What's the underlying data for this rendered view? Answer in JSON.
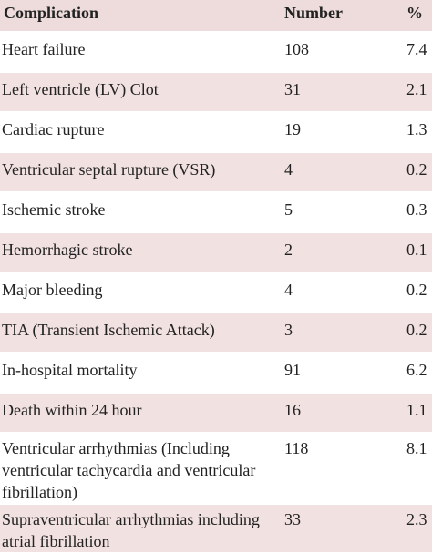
{
  "table": {
    "header": [
      "Complication",
      "Number",
      "%"
    ],
    "rows": [
      [
        "Heart failure",
        108,
        7.4
      ],
      [
        "Left ventricle (LV)  Clot",
        31,
        2.1
      ],
      [
        "Cardiac rupture",
        19,
        1.3
      ],
      [
        "Ventricular septal rupture (VSR)",
        4,
        0.2
      ],
      [
        "Ischemic stroke",
        5,
        0.3
      ],
      [
        "Hemorrhagic stroke",
        2,
        0.1
      ],
      [
        "Major bleeding",
        4,
        0.2
      ],
      [
        "TIA (Transient Ischemic Attack)",
        3,
        0.2
      ],
      [
        "In-hospital mortality",
        91,
        6.2
      ],
      [
        "Death within 24 hour",
        16,
        1.1
      ],
      [
        "Ventricular arrhythmias (Including ventricular tachycardia and ventricular fibrillation)",
        118,
        8.1
      ],
      [
        "Supraventricular arrhythmias including atrial fibrillation",
        33,
        2.3
      ]
    ]
  }
}
